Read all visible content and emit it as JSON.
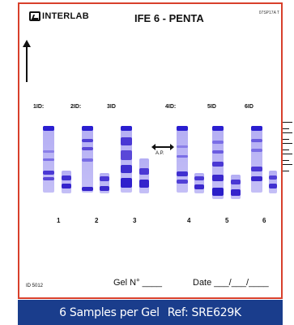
{
  "header": {
    "brand": "INTERLAB",
    "title": "IFE 6 - PENTA",
    "ref_code": "07SP17A T"
  },
  "id_labels": [
    "1ID:",
    "2ID:",
    "3ID",
    "4ID:",
    "5ID",
    "6ID"
  ],
  "lane_numbers": [
    "1",
    "2",
    "3",
    "4",
    "5",
    "6"
  ],
  "ap_label": "A.P.",
  "footer": {
    "id_number": "ID 5012",
    "gel_field": "Gel N° ____",
    "date_field": "Date ___/___/____"
  },
  "banner": {
    "samples_text": "6 Samples per Gel",
    "ref_text": "Ref: SRE629K"
  },
  "colors": {
    "border": "#d8402c",
    "band_dark": "#3a24c8",
    "band_light": "#b4aef4",
    "banner_bg": "#1a3d8c"
  }
}
